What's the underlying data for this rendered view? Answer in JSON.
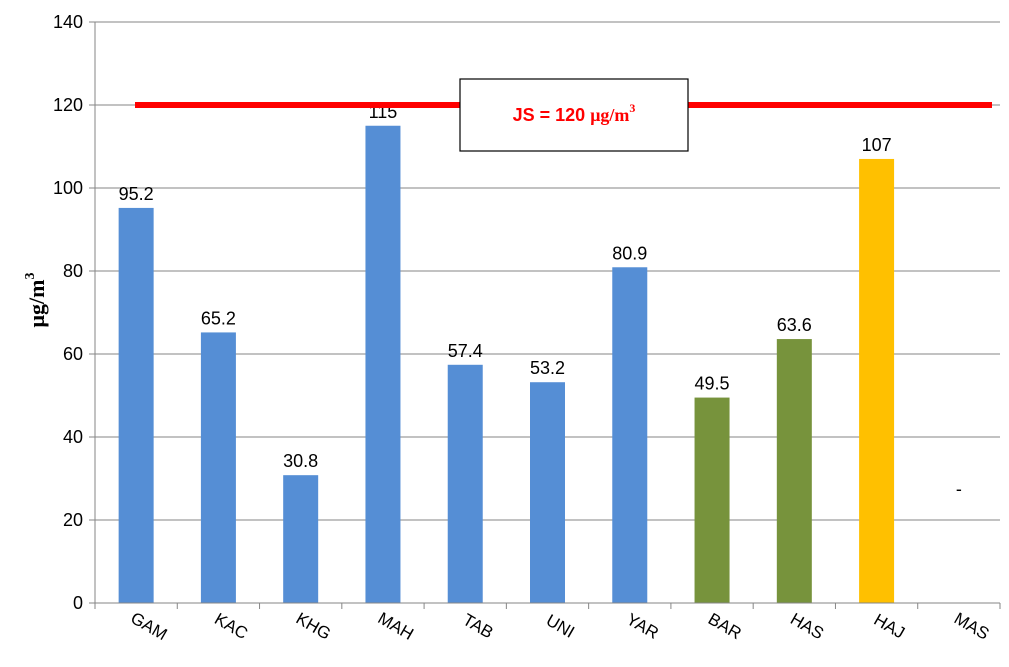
{
  "chart_data": {
    "type": "bar",
    "categories": [
      "GAM",
      "KAC",
      "KHG",
      "MAH",
      "TAB",
      "UNI",
      "YAR",
      "BAR",
      "HAS",
      "HAJ",
      "MAS"
    ],
    "values": [
      95.2,
      65.2,
      30.8,
      115,
      57.4,
      53.2,
      80.9,
      49.5,
      63.6,
      107,
      null
    ],
    "data_labels": [
      "95.2",
      "65.2",
      "30.8",
      "115",
      "57.4",
      "53.2",
      "80.9",
      "49.5",
      "63.6",
      "107",
      "-"
    ],
    "bar_colors": [
      "#558ed5",
      "#558ed5",
      "#558ed5",
      "#558ed5",
      "#558ed5",
      "#558ed5",
      "#558ed5",
      "#77933c",
      "#77933c",
      "#ffc000",
      "#558ed5"
    ],
    "ylabel": "μg/m",
    "ylabel_sup": "3",
    "ylim": [
      0,
      140
    ],
    "yticks": [
      0,
      20,
      40,
      60,
      80,
      100,
      120,
      140
    ],
    "grid": true,
    "reference_line": {
      "value": 120,
      "color": "#ff0000",
      "label": "JS = 120 ",
      "label_unit": "μg/m",
      "label_sup": "3"
    }
  }
}
